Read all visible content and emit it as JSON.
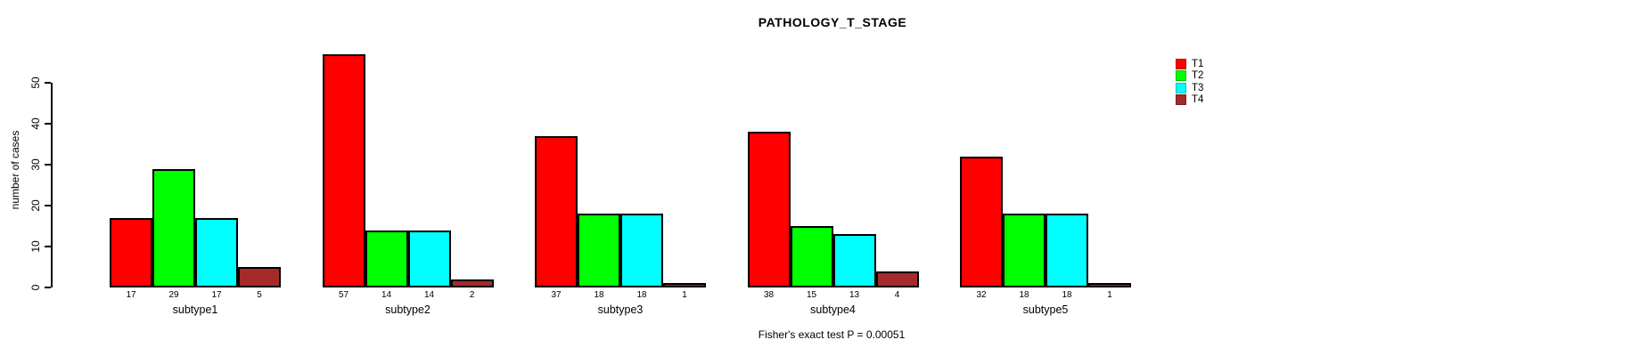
{
  "title": "PATHOLOGY_T_STAGE",
  "footer": "Fisher's exact test P = 0.00051",
  "y_axis": {
    "label": "number of cases",
    "ticks": [
      "0",
      "10",
      "20",
      "30",
      "40",
      "50"
    ]
  },
  "legend": {
    "items": [
      {
        "label": "T1",
        "color": "#FF0000"
      },
      {
        "label": "T2",
        "color": "#00FF00"
      },
      {
        "label": "T3",
        "color": "#00FFFF"
      },
      {
        "label": "T4",
        "color": "#A52A2A"
      }
    ]
  },
  "chart_data": {
    "type": "bar",
    "title": "PATHOLOGY_T_STAGE",
    "categories": [
      "subtype1",
      "subtype2",
      "subtype3",
      "subtype4",
      "subtype5"
    ],
    "series": [
      {
        "name": "T1",
        "color": "#FF0000",
        "values": [
          17,
          57,
          37,
          38,
          32
        ]
      },
      {
        "name": "T2",
        "color": "#00FF00",
        "values": [
          29,
          14,
          18,
          15,
          18
        ]
      },
      {
        "name": "T3",
        "color": "#00FFFF",
        "values": [
          17,
          14,
          18,
          13,
          18
        ]
      },
      {
        "name": "T4",
        "color": "#A52A2A",
        "values": [
          5,
          2,
          1,
          4,
          1
        ]
      }
    ],
    "xlabel": "",
    "ylabel": "number of cases",
    "ylim": [
      0,
      50
    ],
    "yticks": [
      0,
      10,
      20,
      30,
      40,
      50
    ],
    "grid": false,
    "legend_position": "top-right",
    "bar_value_labels": true,
    "annotation": "Fisher's exact test P = 0.00051"
  }
}
